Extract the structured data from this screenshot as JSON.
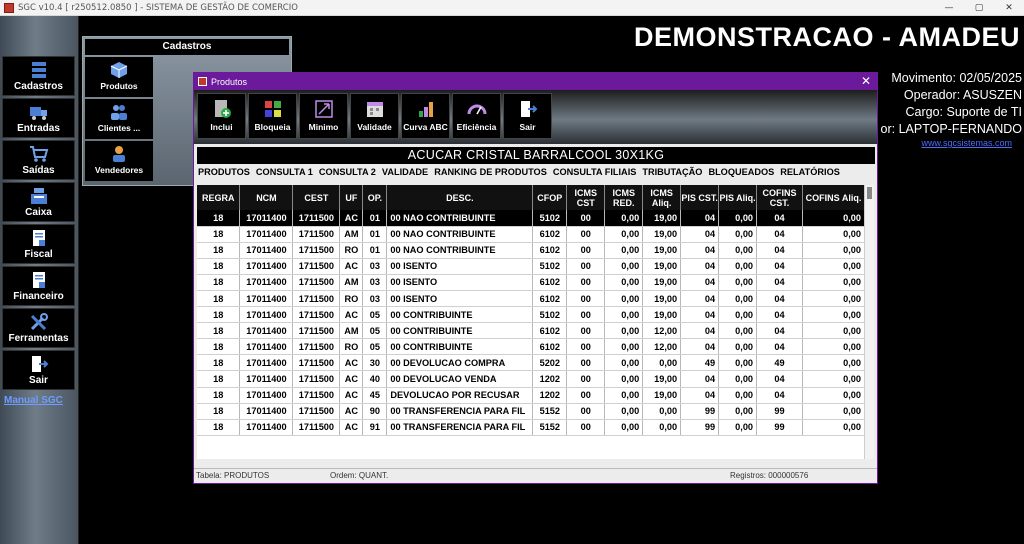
{
  "os_title": "SGC v10.4 [ r250512.0850 ] - SISTEMA DE GESTÃO DE COMERCIO",
  "os_controls": [
    "—",
    "▢",
    "✕"
  ],
  "sidebar": {
    "items": [
      {
        "label": "Cadastros",
        "icon": "cadastros-icon"
      },
      {
        "label": "Entradas",
        "icon": "truck-icon"
      },
      {
        "label": "Saídas",
        "icon": "cart-icon"
      },
      {
        "label": "Caixa",
        "icon": "cash-register-icon"
      },
      {
        "label": "Fiscal",
        "icon": "fiscal-document-icon"
      },
      {
        "label": "Financeiro",
        "icon": "finance-document-icon"
      },
      {
        "label": "Ferramentas",
        "icon": "tools-icon"
      },
      {
        "label": "Sair",
        "icon": "exit-icon"
      }
    ],
    "manual_link": "Manual SGC"
  },
  "cadastros_panel": {
    "title": "Cadastros",
    "items": [
      {
        "label": "Produtos",
        "icon": "box-icon"
      },
      {
        "label": "Clientes ...",
        "icon": "people-icon"
      },
      {
        "label": "Vendedores",
        "icon": "salesperson-icon"
      }
    ]
  },
  "header": {
    "company": "DEMONSTRACAO - AMADEU",
    "movimento": "Movimento: 02/05/2025",
    "operador": "Operador: ASUSZEN",
    "cargo": "Cargo: Suporte de TI",
    "computador": "or: LAPTOP-FERNANDO",
    "website": "www.sgcsistemas.com"
  },
  "produtos_window": {
    "title": "Produtos",
    "close": "✕",
    "toolbar": [
      {
        "label": "Inclui",
        "icon": "add-document-icon"
      },
      {
        "label": "Bloqueia",
        "icon": "block-icon"
      },
      {
        "label": "Minimo",
        "icon": "minimum-icon"
      },
      {
        "label": "Validade",
        "icon": "calendar-icon"
      },
      {
        "label": "Curva ABC",
        "icon": "abc-curve-icon"
      },
      {
        "label": "Eficiência",
        "icon": "gauge-icon"
      },
      {
        "label": "Sair",
        "icon": "exit-icon"
      }
    ],
    "product_name": "ACUCAR CRISTAL BARRALCOOL  30X1KG",
    "tabs": [
      "PRODUTOS",
      "CONSULTA 1",
      "CONSULTA 2",
      "VALIDADE",
      "RANKING DE PRODUTOS",
      "CONSULTA FILIAIS",
      "TRIBUTAÇÃO",
      "BLOQUEADOS",
      "RELATÓRIOS"
    ],
    "active_tab": "TRIBUTAÇÃO",
    "columns": [
      "REGRA",
      "NCM",
      "CEST",
      "UF",
      "OP.",
      "DESC.",
      "CFOP",
      "ICMS CST",
      "ICMS RED.",
      "ICMS Aliq.",
      "PIS CST.",
      "PIS Aliq.",
      "COFINS CST.",
      "COFINS Aliq."
    ],
    "rows": [
      [
        "18",
        "17011400",
        "1711500",
        "AC",
        "01",
        "00 NAO CONTRIBUINTE",
        "5102",
        "00",
        "0,00",
        "19,00",
        "04",
        "0,00",
        "04",
        "0,00"
      ],
      [
        "18",
        "17011400",
        "1711500",
        "AM",
        "01",
        "00 NAO CONTRIBUINTE",
        "6102",
        "00",
        "0,00",
        "19,00",
        "04",
        "0,00",
        "04",
        "0,00"
      ],
      [
        "18",
        "17011400",
        "1711500",
        "RO",
        "01",
        "00 NAO CONTRIBUINTE",
        "6102",
        "00",
        "0,00",
        "19,00",
        "04",
        "0,00",
        "04",
        "0,00"
      ],
      [
        "18",
        "17011400",
        "1711500",
        "AC",
        "03",
        "00 ISENTO",
        "5102",
        "00",
        "0,00",
        "19,00",
        "04",
        "0,00",
        "04",
        "0,00"
      ],
      [
        "18",
        "17011400",
        "1711500",
        "AM",
        "03",
        "00 ISENTO",
        "6102",
        "00",
        "0,00",
        "19,00",
        "04",
        "0,00",
        "04",
        "0,00"
      ],
      [
        "18",
        "17011400",
        "1711500",
        "RO",
        "03",
        "00 ISENTO",
        "6102",
        "00",
        "0,00",
        "19,00",
        "04",
        "0,00",
        "04",
        "0,00"
      ],
      [
        "18",
        "17011400",
        "1711500",
        "AC",
        "05",
        "00 CONTRIBUINTE",
        "5102",
        "00",
        "0,00",
        "19,00",
        "04",
        "0,00",
        "04",
        "0,00"
      ],
      [
        "18",
        "17011400",
        "1711500",
        "AM",
        "05",
        "00 CONTRIBUINTE",
        "6102",
        "00",
        "0,00",
        "12,00",
        "04",
        "0,00",
        "04",
        "0,00"
      ],
      [
        "18",
        "17011400",
        "1711500",
        "RO",
        "05",
        "00 CONTRIBUINTE",
        "6102",
        "00",
        "0,00",
        "12,00",
        "04",
        "0,00",
        "04",
        "0,00"
      ],
      [
        "18",
        "17011400",
        "1711500",
        "AC",
        "30",
        "00 DEVOLUCAO COMPRA",
        "5202",
        "00",
        "0,00",
        "0,00",
        "49",
        "0,00",
        "49",
        "0,00"
      ],
      [
        "18",
        "17011400",
        "1711500",
        "AC",
        "40",
        "00 DEVOLUCAO VENDA",
        "1202",
        "00",
        "0,00",
        "19,00",
        "04",
        "0,00",
        "04",
        "0,00"
      ],
      [
        "18",
        "17011400",
        "1711500",
        "AC",
        "45",
        "DEVOLUCAO POR RECUSAR",
        "1202",
        "00",
        "0,00",
        "19,00",
        "04",
        "0,00",
        "04",
        "0,00"
      ],
      [
        "18",
        "17011400",
        "1711500",
        "AC",
        "90",
        "00 TRANSFERENCIA PARA FIL",
        "5152",
        "00",
        "0,00",
        "0,00",
        "99",
        "0,00",
        "99",
        "0,00"
      ],
      [
        "18",
        "17011400",
        "1711500",
        "AC",
        "91",
        "00 TRANSFERENCIA PARA FIL",
        "5152",
        "00",
        "0,00",
        "0,00",
        "99",
        "0,00",
        "99",
        "0,00"
      ]
    ],
    "selected_row": 0,
    "status": {
      "tabela": "Tabela: PRODUTOS",
      "ordem": "Ordem: QUANT.",
      "registros": "Registros: 000000576"
    }
  }
}
